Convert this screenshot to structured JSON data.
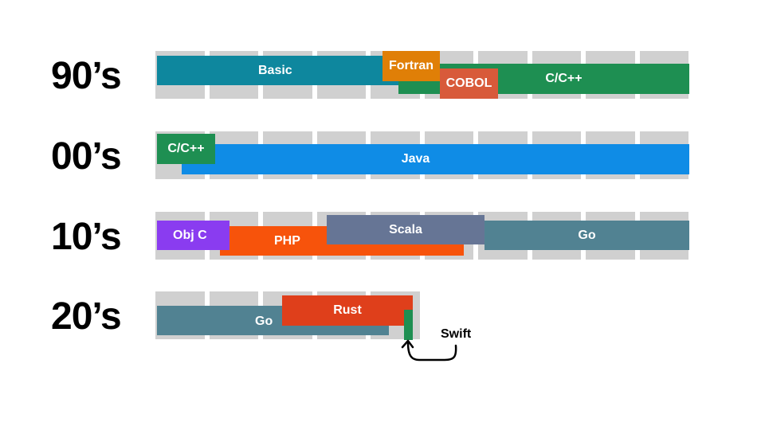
{
  "rows": [
    {
      "decade": "90’s",
      "bars": [
        {
          "label": "Basic",
          "color": "#0e879e"
        },
        {
          "label": "C/C++",
          "color": "#1e8f52"
        },
        {
          "label": "Fortran",
          "color": "#e07f07"
        },
        {
          "label": "COBOL",
          "color": "#d85a3a"
        }
      ]
    },
    {
      "decade": "00’s",
      "bars": [
        {
          "label": "Java",
          "color": "#0f8ce6"
        },
        {
          "label": "C/C++",
          "color": "#1e8f52"
        }
      ]
    },
    {
      "decade": "10’s",
      "bars": [
        {
          "label": "PHP",
          "color": "#f7530b"
        },
        {
          "label": "Obj C",
          "color": "#8a3cf0"
        },
        {
          "label": "Scala",
          "color": "#667595"
        },
        {
          "label": "Go",
          "color": "#518292"
        }
      ]
    },
    {
      "decade": "20’s",
      "bars": [
        {
          "label": "Go",
          "color": "#518292"
        },
        {
          "label": "Rust",
          "color": "#df3f1b"
        },
        {
          "label": "",
          "color": "#1e8f52"
        }
      ]
    }
  ],
  "annotation": {
    "label": "Swift"
  }
}
